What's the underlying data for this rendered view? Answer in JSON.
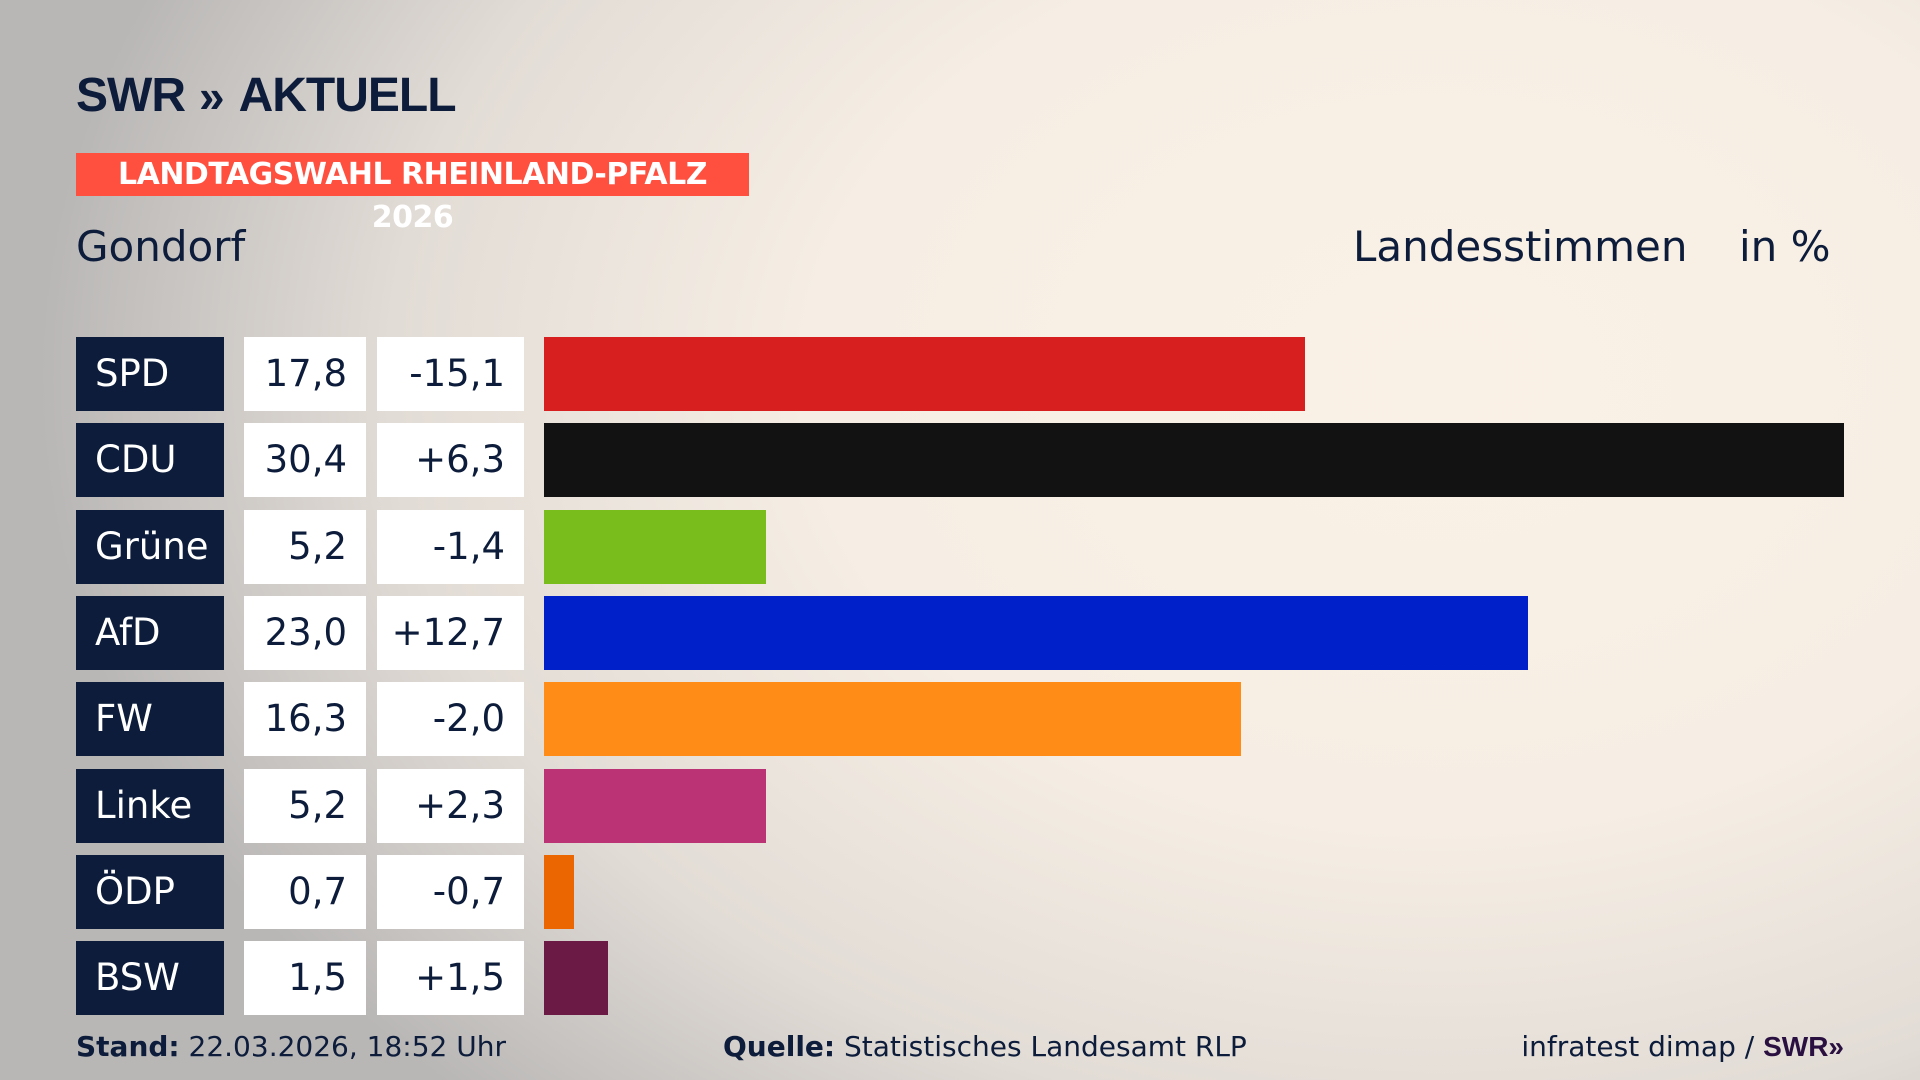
{
  "logo": {
    "text": "SWR",
    "chevrons": "»",
    "suffix": "AKTUELL"
  },
  "banner": "LANDTAGSWAHL RHEINLAND-PFALZ 2026",
  "place": "Gondorf",
  "subtitle": "Landesstimmen",
  "unit": "in %",
  "chart_data": {
    "type": "bar",
    "title": "Landesstimmen",
    "unit": "%",
    "categories": [
      "SPD",
      "CDU",
      "Grüne",
      "AfD",
      "FW",
      "Linke",
      "ÖDP",
      "BSW"
    ],
    "values": [
      17.8,
      30.4,
      5.2,
      23.0,
      16.3,
      5.2,
      0.7,
      1.5
    ],
    "value_labels": [
      "17,8",
      "30,4",
      "5,2",
      "23,0",
      "16,3",
      "5,2",
      "0,7",
      "1,5"
    ],
    "diff_labels": [
      "-15,1",
      "+6,3",
      "-1,4",
      "+12,7",
      "-2,0",
      "+2,3",
      "-0,7",
      "+1,5"
    ],
    "diffs": [
      -15.1,
      6.3,
      -1.4,
      12.7,
      -2.0,
      2.3,
      -0.7,
      1.5
    ],
    "colors": [
      "#d81f20",
      "#121212",
      "#79bd1c",
      "#0020c9",
      "#ff8c17",
      "#bc3375",
      "#eb6500",
      "#6a1a44"
    ],
    "xlim": [
      0,
      30.4
    ]
  },
  "footer": {
    "stand_label": "Stand:",
    "stand_value": "22.03.2026, 18:52 Uhr",
    "source_label": "Quelle:",
    "source_value": "Statistisches Landesamt RLP",
    "credit": "infratest dimap /",
    "credit_logo": "SWR»"
  }
}
